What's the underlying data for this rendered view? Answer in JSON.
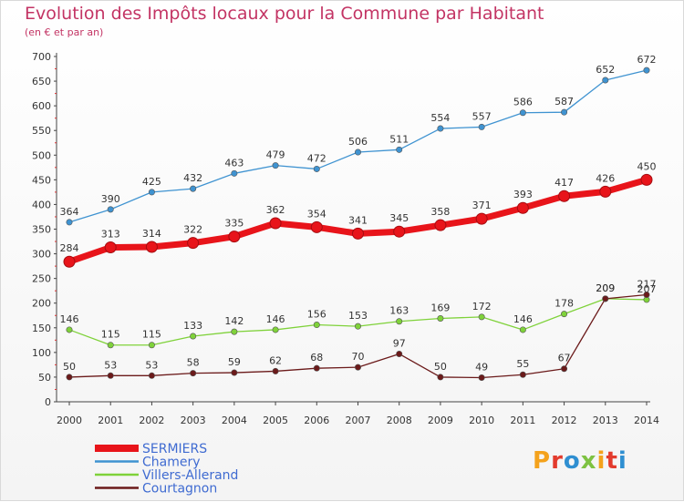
{
  "title": "Evolution des Impôts locaux pour la Commune par Habitant",
  "subtitle": "(en € et par an)",
  "logo": "Proxiti",
  "chart_data": {
    "type": "line",
    "x": [
      "2000",
      "2001",
      "2002",
      "2003",
      "2004",
      "2005",
      "2006",
      "2007",
      "2008",
      "2009",
      "2010",
      "2011",
      "2012",
      "2013",
      "2014"
    ],
    "ylim": [
      0,
      700
    ],
    "yticks": [
      0,
      50,
      100,
      150,
      200,
      250,
      300,
      350,
      400,
      450,
      500,
      550,
      600,
      650,
      700
    ],
    "grid": false,
    "legend_position": "bottom-left",
    "series": [
      {
        "name": "SERMIERS",
        "color": "#e8141a",
        "values": [
          284,
          313,
          314,
          322,
          335,
          362,
          354,
          341,
          345,
          358,
          371,
          393,
          417,
          426,
          450
        ]
      },
      {
        "name": "Chamery",
        "color": "#3f93d1",
        "values": [
          364,
          390,
          425,
          432,
          463,
          479,
          472,
          506,
          511,
          554,
          557,
          586,
          587,
          652,
          672
        ]
      },
      {
        "name": "Villers-Allerand",
        "color": "#7fd23a",
        "values": [
          146,
          115,
          115,
          133,
          142,
          146,
          156,
          153,
          163,
          169,
          172,
          146,
          178,
          209,
          207
        ]
      },
      {
        "name": "Courtagnon",
        "color": "#6b1a1a",
        "values": [
          50,
          53,
          53,
          58,
          59,
          62,
          68,
          70,
          97,
          50,
          49,
          55,
          67,
          209,
          217
        ]
      }
    ]
  }
}
